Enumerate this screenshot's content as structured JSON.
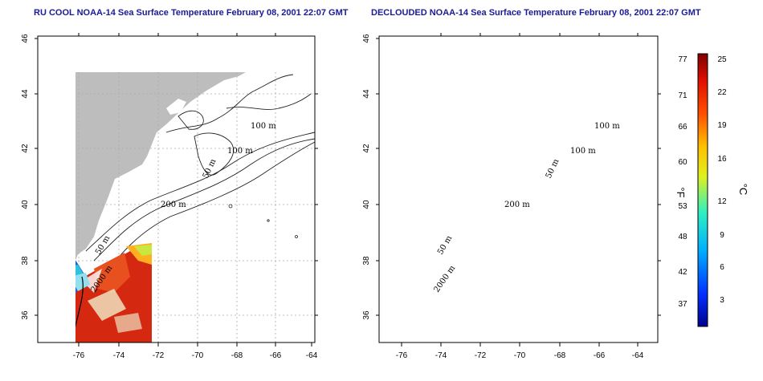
{
  "titles": {
    "left": "RU COOL NOAA-14 Sea Surface Temperature February 08, 2001 22:07 GMT",
    "right": "DECLOUDED NOAA-14 Sea Surface Temperature February 08, 2001 22:07 GMT"
  },
  "axes": {
    "lon_ticks": [
      "-76",
      "-74",
      "-72",
      "-70",
      "-68",
      "-66",
      "-64"
    ],
    "lat_ticks": [
      "36",
      "38",
      "40",
      "42",
      "44",
      "46"
    ]
  },
  "contours": {
    "labels": [
      "100 m",
      "100 m",
      "50 m",
      "200 m",
      "50 m",
      "2000 m"
    ]
  },
  "colorbar": {
    "fahrenheit_unit": "°F",
    "celsius_unit": "°C",
    "fahrenheit_labels": [
      "77",
      "71",
      "66",
      "60",
      "53",
      "48",
      "42",
      "37"
    ],
    "celsius_labels": [
      "25",
      "22",
      "19",
      "16",
      "12",
      "9",
      "6",
      "3"
    ]
  },
  "colors": {
    "land": "#bdbdbd",
    "ocean": "#ffffff",
    "title": "#1a1a9a",
    "warm": "#d42810",
    "cool": "#1f5fd0"
  }
}
